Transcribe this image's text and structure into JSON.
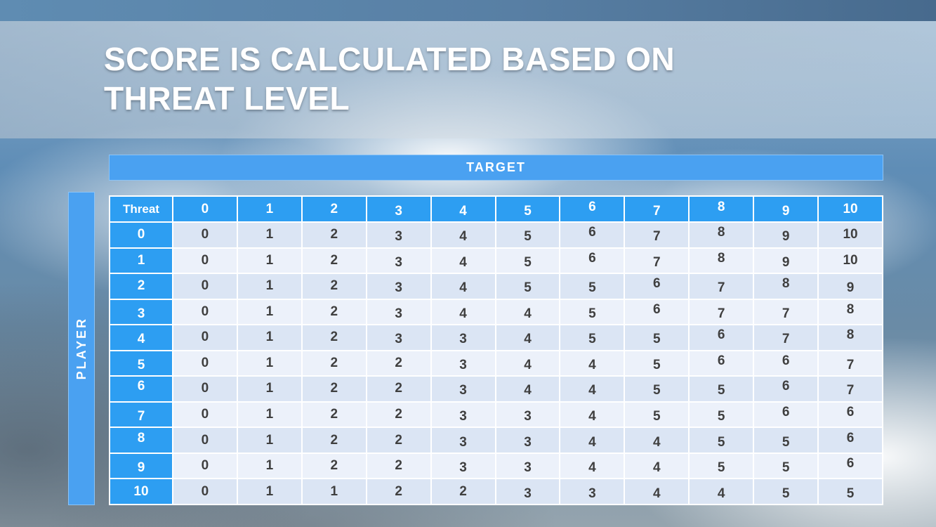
{
  "title": {
    "line1": "SCORE IS CALCULATED BASED ON",
    "line2": "THREAT LEVEL"
  },
  "chart_data": {
    "type": "table",
    "title": "SCORE IS CALCULATED BASED ON THREAT LEVEL",
    "x_axis_label": "TARGET",
    "y_axis_label": "PLAYER",
    "corner_header": "Threat",
    "columns": [
      "0",
      "1",
      "2",
      "3",
      "4",
      "5",
      "6",
      "7",
      "8",
      "9",
      "10"
    ],
    "rows": [
      {
        "label": "0",
        "values": [
          0,
          1,
          2,
          3,
          4,
          5,
          6,
          7,
          8,
          9,
          10
        ]
      },
      {
        "label": "1",
        "values": [
          0,
          1,
          2,
          3,
          4,
          5,
          6,
          7,
          8,
          9,
          10
        ]
      },
      {
        "label": "2",
        "values": [
          0,
          1,
          2,
          3,
          4,
          5,
          5,
          6,
          7,
          8,
          9
        ]
      },
      {
        "label": "3",
        "values": [
          0,
          1,
          2,
          3,
          4,
          4,
          5,
          6,
          7,
          7,
          8
        ]
      },
      {
        "label": "4",
        "values": [
          0,
          1,
          2,
          3,
          3,
          4,
          5,
          5,
          6,
          7,
          8
        ]
      },
      {
        "label": "5",
        "values": [
          0,
          1,
          2,
          2,
          3,
          4,
          4,
          5,
          6,
          6,
          7
        ]
      },
      {
        "label": "6",
        "values": [
          0,
          1,
          2,
          2,
          3,
          4,
          4,
          5,
          5,
          6,
          7
        ]
      },
      {
        "label": "7",
        "values": [
          0,
          1,
          2,
          2,
          3,
          3,
          4,
          5,
          5,
          6,
          6
        ]
      },
      {
        "label": "8",
        "values": [
          0,
          1,
          2,
          2,
          3,
          3,
          4,
          4,
          5,
          5,
          6
        ]
      },
      {
        "label": "9",
        "values": [
          0,
          1,
          2,
          2,
          3,
          3,
          4,
          4,
          5,
          5,
          6
        ]
      },
      {
        "label": "10",
        "values": [
          0,
          1,
          1,
          2,
          2,
          3,
          3,
          4,
          4,
          5,
          5
        ]
      }
    ],
    "layout": {
      "banding": "alternating-rows",
      "header_position": "top-and-left"
    }
  },
  "colors": {
    "top_bar": "#5d89af",
    "banner_blue": "#4aa1f1",
    "header_blue": "#2d9ef2",
    "row_odd": "#dbe5f4",
    "row_even": "#ecf1fa",
    "title_text": "#ffffff",
    "cell_text": "#3f3f3f"
  }
}
